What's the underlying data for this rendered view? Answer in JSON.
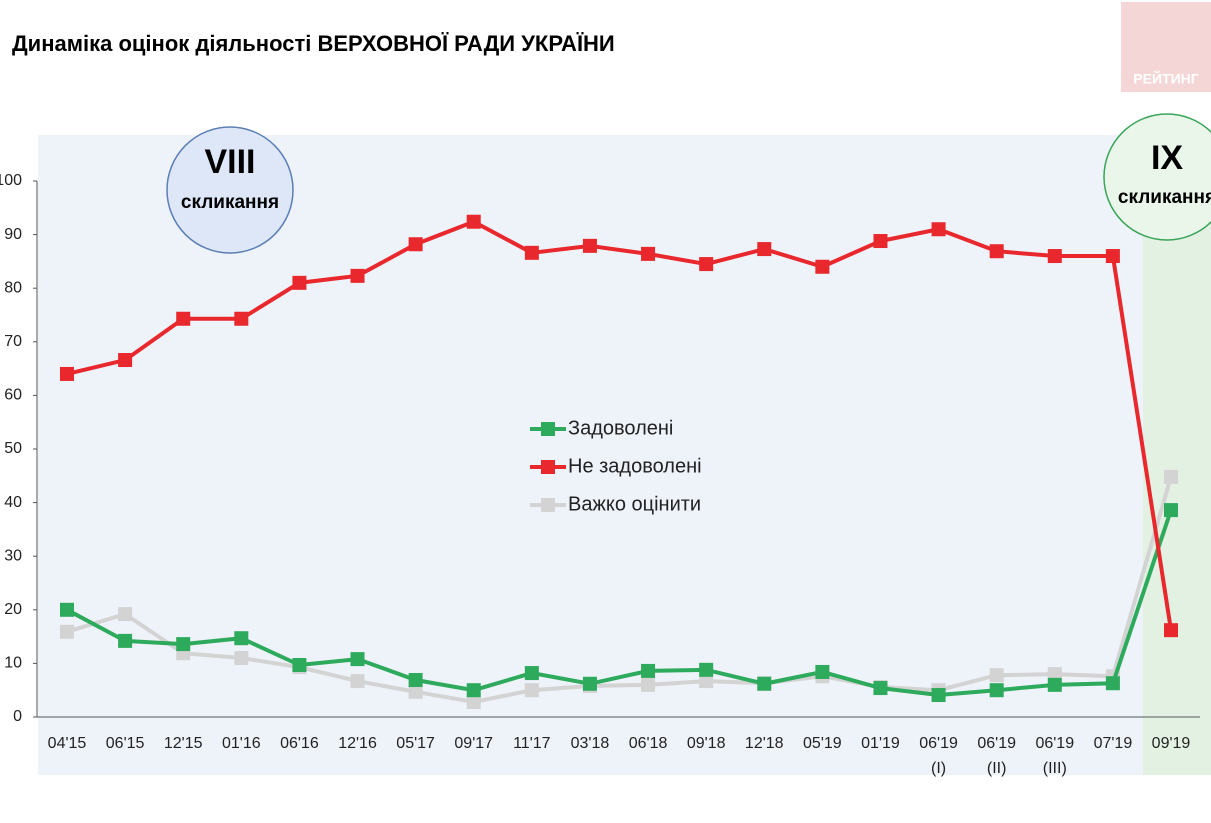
{
  "chart_data": {
    "type": "line",
    "title": "Динаміка оцінок діяльності ВЕРХОВНОЇ РАДИ УКРАЇНИ",
    "logo": "РЕЙТИНГ",
    "annotations": [
      {
        "number": "VIII",
        "text": "скликання"
      },
      {
        "number": "IX",
        "text": "скликання"
      }
    ],
    "categories": [
      "04'15",
      "06'15",
      "12'15",
      "01'16",
      "06'16",
      "12'16",
      "05'17",
      "09'17",
      "11'17",
      "03'18",
      "06'18",
      "09'18",
      "12'18",
      "05'19",
      "01'19",
      "06'19 (I)",
      "06'19 (II)",
      "06'19 (III)",
      "07'19",
      "09'19"
    ],
    "series": [
      {
        "name": "Задоволені",
        "color": "#2eaa5c",
        "values": [
          20,
          14.2,
          13.6,
          14.7,
          9.7,
          10.8,
          6.9,
          5.0,
          8.2,
          6.2,
          8.6,
          8.8,
          6.2,
          8.4,
          5.4,
          4.1,
          5.0,
          6.0,
          6.3,
          38.6
        ]
      },
      {
        "name": "Не задоволені",
        "color": "#e8282d",
        "values": [
          64.0,
          66.6,
          74.3,
          74.3,
          81.0,
          82.3,
          88.2,
          92.4,
          86.6,
          87.9,
          86.4,
          84.5,
          87.3,
          84.0,
          88.8,
          91.0,
          86.9,
          86.0,
          86.0,
          16.2
        ]
      },
      {
        "name": "Важко оцінити",
        "color": "#d3d3d3",
        "values": [
          15.9,
          19.2,
          11.9,
          11.0,
          9.3,
          6.7,
          4.7,
          2.8,
          5.0,
          5.8,
          6.0,
          6.7,
          6.3,
          7.6,
          5.6,
          5.0,
          7.8,
          8.0,
          7.6,
          44.8
        ]
      }
    ],
    "ylim": [
      0,
      100
    ],
    "yticks": [
      0,
      10,
      20,
      30,
      40,
      50,
      60,
      70,
      80,
      90,
      100
    ],
    "grid": false
  }
}
